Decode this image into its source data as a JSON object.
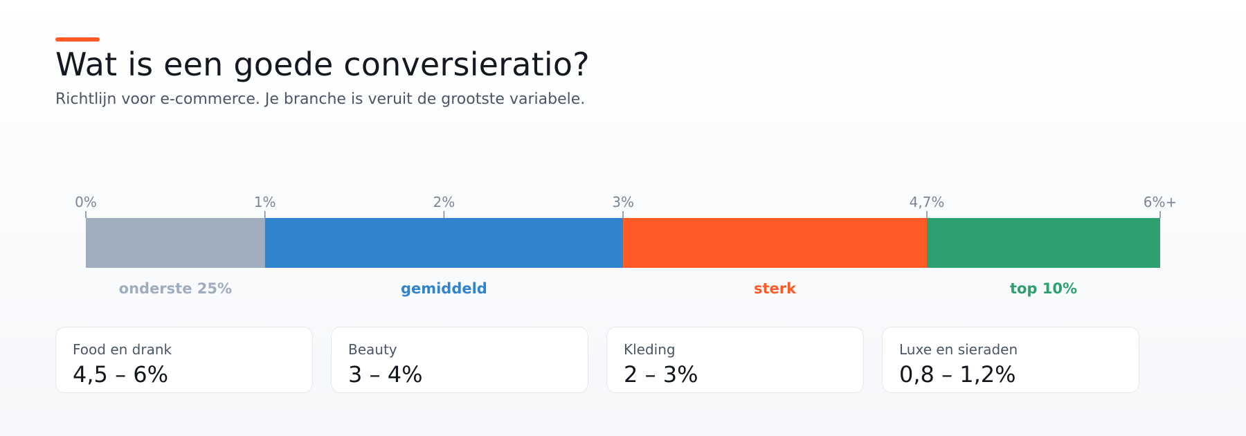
{
  "header": {
    "title": "Wat is een goede conversieratio?",
    "subtitle": "Richtlijn voor e-commerce. Je branche is veruit de grootste variabele.",
    "accent_color": "#FF5A26"
  },
  "chart_data": {
    "type": "bar",
    "orientation": "horizontal-segmented",
    "title": "Wat is een goede conversieratio?",
    "subtitle": "Richtlijn voor e-commerce. Je branche is veruit de grootste variabele.",
    "xlim": [
      0,
      6
    ],
    "ticks": [
      {
        "value": 0,
        "label": "0%"
      },
      {
        "value": 1,
        "label": "1%"
      },
      {
        "value": 2,
        "label": "2%"
      },
      {
        "value": 3,
        "label": "3%"
      },
      {
        "value": 4.7,
        "label": "4,7%"
      },
      {
        "value": 6,
        "label": "6%+"
      }
    ],
    "segments": [
      {
        "label": "onderste 25%",
        "start": 0,
        "end": 1,
        "color": "#A0ADBF"
      },
      {
        "label": "gemiddeld",
        "start": 1,
        "end": 3,
        "color": "#3183CE"
      },
      {
        "label": "sterk",
        "start": 3,
        "end": 4.7,
        "color": "#FF5A26"
      },
      {
        "label": "top 10%",
        "start": 4.7,
        "end": 6,
        "color": "#2E9F6F"
      }
    ]
  },
  "benchmarks": [
    {
      "label": "Food en drank",
      "value": "4,5 – 6%"
    },
    {
      "label": "Beauty",
      "value": "3 – 4%"
    },
    {
      "label": "Kleding",
      "value": "2 – 3%"
    },
    {
      "label": "Luxe en sieraden",
      "value": "0,8 – 1,2%"
    }
  ]
}
